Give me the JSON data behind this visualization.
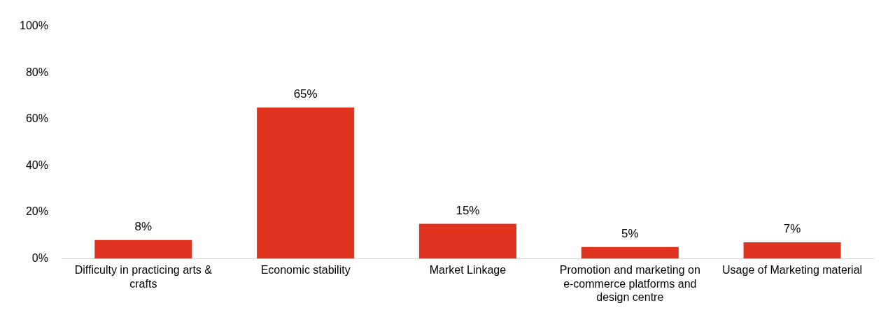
{
  "chart_data": {
    "type": "bar",
    "categories": [
      "Difficulty in practicing arts & crafts",
      "Economic stability",
      "Market Linkage",
      "Promotion and marketing on e-commerce platforms and design centre",
      "Usage of Marketing material"
    ],
    "values": [
      8,
      65,
      15,
      5,
      7
    ],
    "value_labels": [
      "8%",
      "65%",
      "15%",
      "5%",
      "7%"
    ],
    "color": "#e03320",
    "ylim": [
      0,
      100
    ],
    "yticks": [
      {
        "value": 0,
        "label": "0%"
      },
      {
        "value": 20,
        "label": "20%"
      },
      {
        "value": 40,
        "label": "40%"
      },
      {
        "value": 60,
        "label": "60%"
      },
      {
        "value": 80,
        "label": "80%"
      },
      {
        "value": 100,
        "label": "100%"
      }
    ],
    "grid": false,
    "legend": false
  }
}
